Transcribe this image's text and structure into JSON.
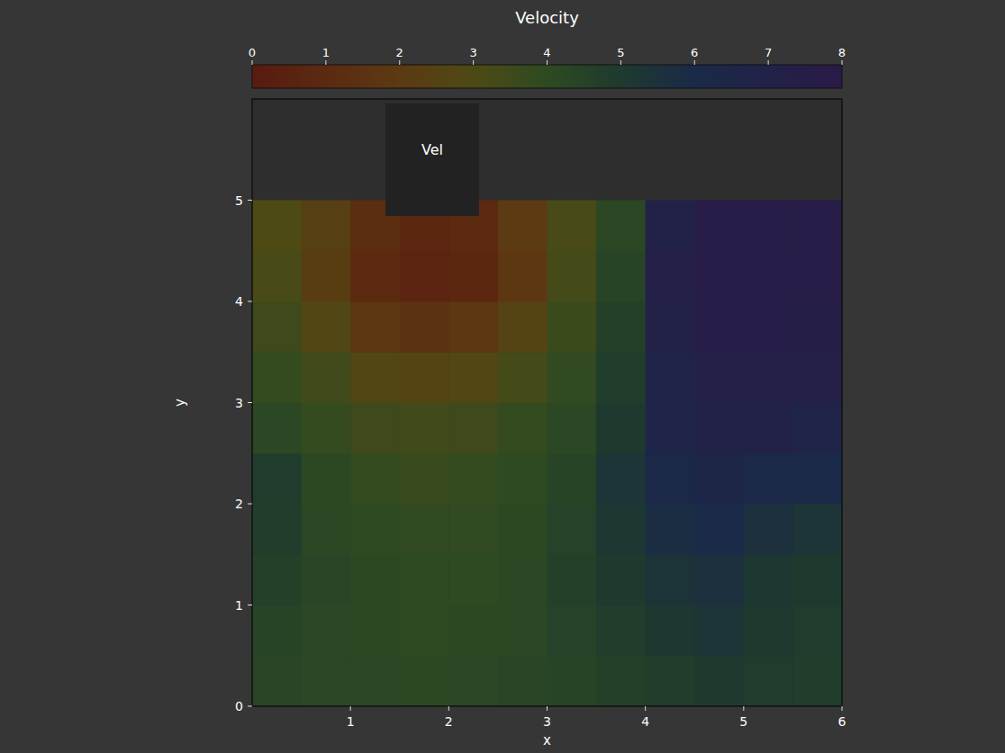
{
  "chart_data": {
    "type": "heatmap",
    "title": "Velocity",
    "x_label": "x",
    "y_label": "y",
    "annotation": "Vel",
    "x": [
      0.25,
      0.75,
      1.25,
      1.75,
      2.25,
      2.75,
      3.25,
      3.75,
      4.25,
      4.75,
      5.25,
      5.75
    ],
    "y": [
      0.25,
      0.75,
      1.25,
      1.75,
      2.25,
      2.75,
      3.25,
      3.75,
      4.25,
      4.75
    ],
    "values": [
      [
        4.3,
        4.2,
        4.2,
        4.1,
        4.2,
        4.3,
        4.4,
        4.6,
        4.8,
        5.0,
        4.9,
        4.8
      ],
      [
        4.4,
        4.2,
        4.1,
        4.0,
        4.1,
        4.2,
        4.5,
        4.8,
        5.1,
        5.3,
        5.0,
        4.9
      ],
      [
        4.6,
        4.3,
        4.1,
        4.0,
        4.0,
        4.2,
        4.6,
        5.0,
        5.4,
        5.6,
        5.2,
        5.0
      ],
      [
        4.8,
        4.2,
        4.0,
        3.9,
        3.9,
        4.1,
        4.5,
        5.2,
        5.8,
        6.0,
        5.6,
        5.3
      ],
      [
        4.9,
        4.1,
        3.8,
        3.7,
        3.8,
        4.0,
        4.4,
        5.3,
        6.2,
        6.5,
        6.3,
        6.0
      ],
      [
        4.2,
        3.8,
        3.5,
        3.4,
        3.5,
        3.8,
        4.2,
        5.0,
        6.6,
        7.0,
        7.0,
        6.8
      ],
      [
        3.8,
        3.4,
        2.8,
        2.6,
        2.8,
        3.3,
        3.9,
        4.8,
        6.8,
        7.3,
        7.3,
        7.2
      ],
      [
        3.5,
        2.8,
        1.8,
        1.5,
        1.8,
        2.6,
        3.6,
        4.6,
        7.0,
        7.5,
        7.5,
        7.4
      ],
      [
        3.2,
        2.2,
        1.0,
        0.6,
        0.8,
        1.8,
        3.3,
        4.4,
        7.2,
        7.6,
        7.7,
        7.6
      ],
      [
        3.0,
        2.4,
        1.2,
        0.8,
        1.0,
        2.0,
        3.2,
        4.2,
        7.0,
        7.6,
        7.8,
        7.7
      ]
    ],
    "xlim": [
      0,
      6
    ],
    "xticks": [
      1,
      2,
      3,
      4,
      5,
      6
    ],
    "ylim": [
      0,
      6
    ],
    "yticks": [
      0,
      1,
      2,
      3,
      4,
      5
    ],
    "colorbar": {
      "range": [
        0,
        8
      ],
      "ticks": [
        0,
        1,
        2,
        3,
        4,
        5,
        6,
        7,
        8
      ]
    }
  }
}
